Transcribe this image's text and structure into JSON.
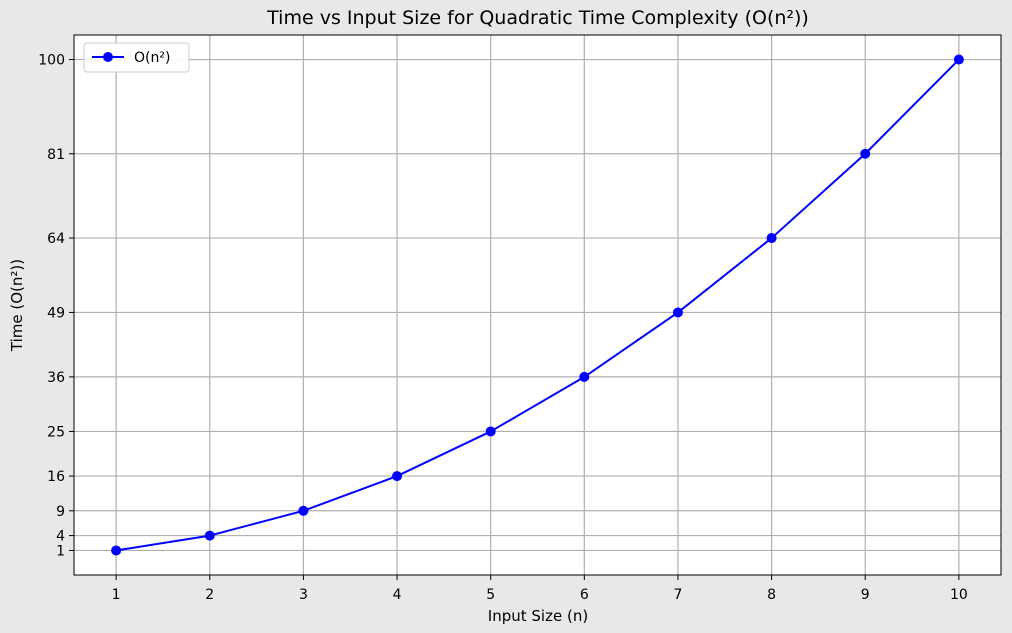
{
  "chart_data": {
    "type": "line",
    "title": "Time vs Input Size for Quadratic Time Complexity (O(n²))",
    "xlabel": "Input Size (n)",
    "ylabel": "Time (O(n²))",
    "x": [
      1,
      2,
      3,
      4,
      5,
      6,
      7,
      8,
      9,
      10
    ],
    "series": [
      {
        "name": "O(n²)",
        "values": [
          1,
          4,
          9,
          16,
          25,
          36,
          49,
          64,
          81,
          100
        ],
        "color": "#0000ff",
        "marker": "circle"
      }
    ],
    "xticks": [
      1,
      2,
      3,
      4,
      5,
      6,
      7,
      8,
      9,
      10
    ],
    "yticks": [
      1,
      4,
      9,
      16,
      25,
      36,
      49,
      64,
      81,
      100
    ],
    "xlim": [
      0.55,
      10.45
    ],
    "ylim": [
      -3.95,
      104.95
    ],
    "grid": true,
    "legend_position": "top-left"
  }
}
